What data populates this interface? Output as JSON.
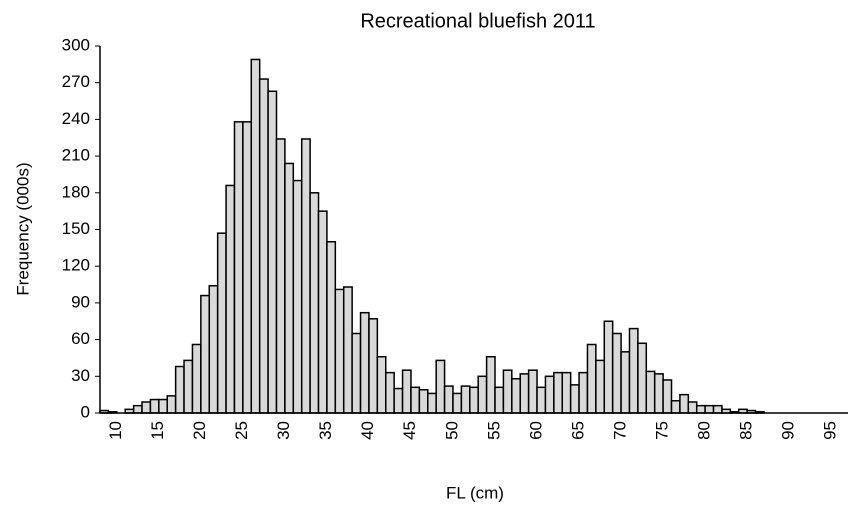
{
  "chart_data": {
    "type": "bar",
    "title": "Recreational bluefish 2011",
    "x_label": "FL (cm)",
    "y_label": "Frequency (000s)",
    "categories": [
      null,
      "10",
      null,
      null,
      null,
      null,
      "15",
      null,
      null,
      null,
      null,
      "20",
      null,
      null,
      null,
      null,
      "25",
      null,
      null,
      null,
      null,
      "30",
      null,
      null,
      null,
      null,
      "35",
      null,
      null,
      null,
      null,
      "40",
      null,
      null,
      null,
      null,
      "45",
      null,
      null,
      null,
      null,
      "50",
      null,
      null,
      null,
      null,
      "55",
      null,
      null,
      null,
      null,
      "60",
      null,
      null,
      null,
      null,
      "65",
      null,
      null,
      null,
      null,
      "70",
      null,
      null,
      null,
      null,
      "75",
      null,
      null,
      null,
      null,
      "80",
      null,
      null,
      null,
      null,
      "85",
      null,
      null,
      null,
      null,
      "90",
      null,
      null,
      null,
      null,
      "95",
      null,
      null
    ],
    "values": [
      2,
      1,
      0,
      3,
      6,
      9,
      11,
      11,
      14,
      38,
      43,
      56,
      96,
      104,
      147,
      186,
      238,
      238,
      289,
      273,
      263,
      224,
      204,
      190,
      224,
      180,
      165,
      140,
      101,
      103,
      65,
      82,
      77,
      46,
      33,
      20,
      35,
      21,
      19,
      16,
      43,
      22,
      16,
      22,
      21,
      30,
      46,
      21,
      35,
      28,
      32,
      35,
      21,
      30,
      33,
      33,
      23,
      33,
      56,
      43,
      75,
      65,
      50,
      69,
      57,
      34,
      32,
      27,
      10,
      15,
      9,
      6,
      6,
      6,
      3,
      1,
      3,
      2,
      1,
      0,
      0,
      0,
      0,
      0,
      0,
      0,
      0,
      0,
      0
    ],
    "color": "#d9d9d9",
    "ylim": [
      0,
      300
    ],
    "yticks": [
      0,
      30,
      60,
      90,
      120,
      150,
      180,
      210,
      240,
      270,
      300
    ],
    "grid": false
  }
}
